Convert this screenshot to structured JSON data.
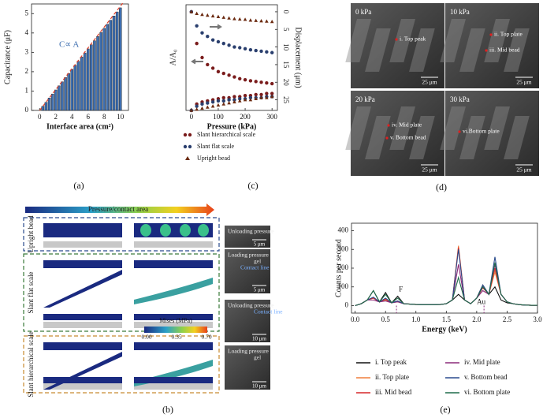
{
  "chart_data": [
    {
      "type": "bar",
      "panel_label": "(a)",
      "x_label": "Interface area (cm²)",
      "y_label": "Capacitance (μF)",
      "annotation": "C∝ A",
      "color": "#3f6fb0",
      "x": [
        0.4,
        0.8,
        1.2,
        1.6,
        2.0,
        2.4,
        2.8,
        3.2,
        3.6,
        4.0,
        4.4,
        4.8,
        5.2,
        5.6,
        6.0,
        6.4,
        6.8,
        7.2,
        7.6,
        8.0,
        8.4,
        8.8,
        9.2,
        9.6,
        10.0
      ],
      "values": [
        0.21,
        0.42,
        0.64,
        0.85,
        1.06,
        1.27,
        1.48,
        1.7,
        1.91,
        2.12,
        2.33,
        2.54,
        2.76,
        2.97,
        3.18,
        3.39,
        3.6,
        3.82,
        4.03,
        4.24,
        4.45,
        4.66,
        4.88,
        5.09,
        5.3
      ],
      "trend_line": {
        "x": [
          0,
          10.4
        ],
        "values": [
          0,
          5.6
        ],
        "color": "#e0402a"
      },
      "xlim": [
        -1,
        11
      ],
      "xticks": [
        0,
        2,
        4,
        6,
        8,
        10
      ],
      "ylim": [
        0,
        5.5
      ],
      "yticks": [
        0,
        1,
        2,
        3,
        4,
        5
      ]
    },
    {
      "type": "scatter",
      "panel_label": "(c)",
      "x_label": "Pressure (kPa)",
      "y_label": "A/A₀",
      "y2_label": "Displacement (μm)",
      "x": [
        0,
        20,
        40,
        60,
        80,
        100,
        120,
        140,
        160,
        180,
        200,
        220,
        240,
        260,
        280,
        300
      ],
      "xlim": [
        -20,
        320
      ],
      "xticks": [
        0,
        100,
        200,
        300
      ],
      "ylim": [
        0,
        1
      ],
      "y2lim": [
        -2,
        28
      ],
      "y2_inverted": true,
      "y2ticks": [
        0,
        5,
        10,
        15,
        20,
        25
      ],
      "series": [
        {
          "name": "Slant hierarchical scale",
          "color": "#7a1c1c",
          "marker": "circle",
          "values": [
            0,
            0.06,
            0.08,
            0.09,
            0.1,
            0.11,
            0.12,
            0.12,
            0.13,
            0.13,
            0.14,
            0.14,
            0.15,
            0.15,
            0.16,
            0.16
          ],
          "displacement": [
            0,
            9,
            13,
            15,
            16,
            17,
            17.5,
            18,
            18.5,
            19,
            19.3,
            19.6,
            19.8,
            20,
            20.2,
            20.4
          ]
        },
        {
          "name": "Slant flat scale",
          "color": "#2a3f6e",
          "marker": "circle",
          "values": [
            0,
            0.04,
            0.06,
            0.07,
            0.08,
            0.09,
            0.09,
            0.1,
            0.1,
            0.11,
            0.11,
            0.12,
            0.12,
            0.12,
            0.13,
            0.13
          ],
          "displacement": [
            0,
            4,
            6,
            7,
            8,
            8.5,
            9,
            9.5,
            10,
            10.2,
            10.5,
            10.8,
            11,
            11.2,
            11.4,
            11.6
          ]
        },
        {
          "name": "Upright bead",
          "color": "#6b2a10",
          "marker": "triangle",
          "values": [
            0,
            0.01,
            0.02,
            0.03,
            0.04,
            0.05,
            0.06,
            0.07,
            0.08,
            0.09,
            0.1,
            0.1,
            0.11,
            0.12,
            0.12,
            0.13
          ],
          "displacement": [
            0,
            0.5,
            0.8,
            1,
            1.2,
            1.4,
            1.6,
            1.8,
            2,
            2.1,
            2.2,
            2.4,
            2.5,
            2.6,
            2.7,
            2.8
          ]
        }
      ]
    },
    {
      "type": "line",
      "panel_label": "(e)",
      "x_label": "Energy (keV)",
      "y_label": "Counts per second",
      "x": [
        0,
        0.1,
        0.2,
        0.3,
        0.4,
        0.5,
        0.6,
        0.7,
        0.8,
        0.9,
        1.0,
        1.1,
        1.2,
        1.3,
        1.4,
        1.5,
        1.6,
        1.7,
        1.8,
        1.9,
        2.0,
        2.1,
        2.2,
        2.3,
        2.4,
        2.5,
        2.6,
        2.7,
        2.8,
        2.9,
        3.0
      ],
      "xlim": [
        -0.06,
        3.0
      ],
      "xticks": [
        {
          "value": 0,
          "label": "0.0"
        },
        {
          "value": 0.5,
          "label": "0.5"
        },
        {
          "value": 1,
          "label": "1.0"
        },
        {
          "value": 1.5,
          "label": "1.5"
        },
        {
          "value": 2,
          "label": "2.0"
        },
        {
          "value": 2.5,
          "label": "2.5"
        },
        {
          "value": 3,
          "label": "3.0"
        }
      ],
      "ylim": [
        -40,
        440
      ],
      "yticks": [
        0,
        100,
        200,
        300,
        400
      ],
      "markers": [
        {
          "label": "F",
          "x": 0.68
        },
        {
          "label": "Au",
          "x": 2.12
        }
      ],
      "series": [
        {
          "name": "i. Top peak",
          "color": "#111111",
          "values": [
            0,
            10,
            30,
            80,
            20,
            70,
            15,
            50,
            10,
            8,
            6,
            5,
            5,
            5,
            6,
            10,
            30,
            60,
            30,
            10,
            40,
            110,
            60,
            100,
            30,
            15,
            10,
            5,
            3,
            2,
            2
          ]
        },
        {
          "name": "ii. Top plate",
          "color": "#f07f3c",
          "values": [
            0,
            10,
            30,
            40,
            20,
            30,
            15,
            20,
            10,
            8,
            6,
            5,
            5,
            5,
            6,
            10,
            30,
            320,
            30,
            10,
            40,
            100,
            60,
            180,
            60,
            20,
            10,
            5,
            3,
            2,
            2
          ]
        },
        {
          "name": "iii. Mid bead",
          "color": "#d62728",
          "values": [
            0,
            10,
            30,
            40,
            20,
            35,
            15,
            25,
            10,
            8,
            6,
            5,
            5,
            5,
            6,
            10,
            30,
            310,
            30,
            10,
            40,
            95,
            60,
            200,
            60,
            20,
            10,
            5,
            3,
            2,
            2
          ]
        },
        {
          "name": "iv. Mid plate",
          "color": "#8b2a7a",
          "values": [
            0,
            10,
            30,
            30,
            20,
            25,
            15,
            20,
            10,
            8,
            6,
            5,
            5,
            5,
            6,
            10,
            30,
            220,
            30,
            10,
            40,
            80,
            60,
            220,
            60,
            20,
            10,
            5,
            3,
            2,
            2
          ]
        },
        {
          "name": "v. Bottom bead",
          "color": "#2a4b8d",
          "values": [
            0,
            10,
            30,
            45,
            20,
            40,
            15,
            25,
            10,
            8,
            6,
            5,
            5,
            5,
            6,
            10,
            30,
            300,
            30,
            10,
            40,
            110,
            60,
            260,
            60,
            20,
            10,
            5,
            3,
            2,
            2
          ]
        },
        {
          "name": "vi. Bottom plate",
          "color": "#1f6b4a",
          "values": [
            0,
            10,
            30,
            80,
            20,
            60,
            15,
            40,
            10,
            8,
            6,
            5,
            5,
            5,
            6,
            10,
            30,
            150,
            30,
            10,
            40,
            100,
            60,
            230,
            60,
            20,
            10,
            5,
            3,
            2,
            2
          ]
        }
      ]
    }
  ],
  "figure": {
    "panel_b": {
      "label": "(b)",
      "arrow_title": "Pressure/contact area",
      "rows": [
        "Upright bead",
        "Slant flat scale",
        "Slant hierarchical scale"
      ],
      "colorbar": {
        "title": "Mises (MPa)",
        "ticks": [
          "0.00",
          "0.35",
          "0.70"
        ]
      },
      "sem": [
        {
          "title": "Unloading pressure",
          "notes": [],
          "scale": "5 μm"
        },
        {
          "title": "Loading pressure",
          "notes": [
            "gel",
            "Contact line"
          ],
          "scale": "5 μm"
        },
        {
          "title": "Unloading pressure",
          "notes": [
            "Contact line"
          ],
          "scale": "10 μm"
        },
        {
          "title": "Loading pressure",
          "notes": [
            "gel"
          ],
          "scale": "10 μm"
        }
      ]
    },
    "panel_d": {
      "label": "(d)",
      "images": [
        {
          "pressure": "0 kPa",
          "annotations": [
            "i. Top peak"
          ],
          "scale": "25 μm"
        },
        {
          "pressure": "10 kPa",
          "annotations": [
            "ii. Top plate",
            "iii. Mid bead"
          ],
          "scale": "25 μm"
        },
        {
          "pressure": "20 kPa",
          "annotations": [
            "iv. Mid plate",
            "v. Bottom bead"
          ],
          "scale": "25 μm"
        },
        {
          "pressure": "30 kPa",
          "annotations": [
            "vi.Bottom plate"
          ],
          "scale": "25 μm"
        }
      ]
    }
  }
}
